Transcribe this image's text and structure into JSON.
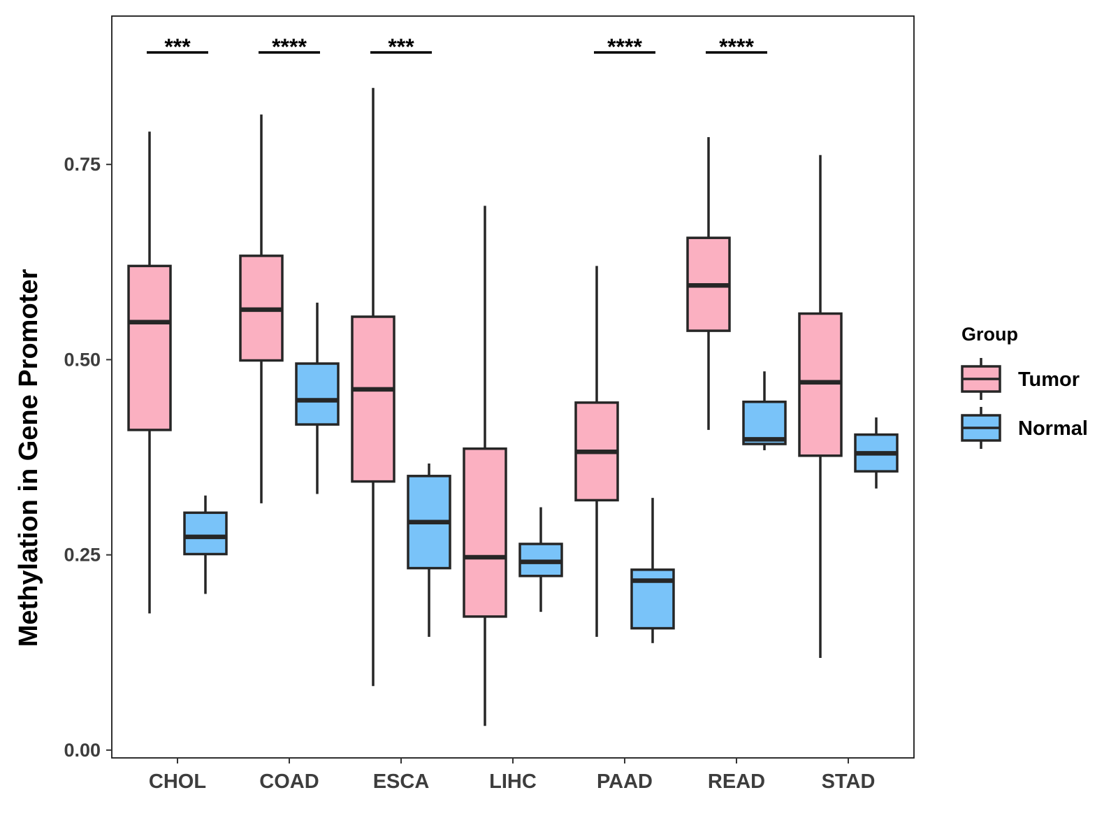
{
  "chart_data": {
    "type": "boxplot",
    "title": "",
    "xlabel": "",
    "ylabel": "Methylation in Gene Promoter",
    "ylim": [
      -0.01,
      0.94
    ],
    "yticks": [
      "0.00",
      "0.25",
      "0.50",
      "0.75"
    ],
    "ytick_values": [
      0,
      0.25,
      0.5,
      0.75
    ],
    "categories": [
      "CHOL",
      "COAD",
      "ESCA",
      "LIHC",
      "PAAD",
      "READ",
      "STAD"
    ],
    "grid": false,
    "legend": {
      "title": "Group",
      "position": "right",
      "entries": [
        {
          "name": "Tumor",
          "color": "#fbb0c1"
        },
        {
          "name": "Normal",
          "color": "#79c3f9"
        }
      ]
    },
    "series": [
      {
        "name": "Tumor",
        "color": "#fbb0c1",
        "boxes": [
          {
            "min": 0.175,
            "q1": 0.41,
            "median": 0.548,
            "q3": 0.62,
            "max": 0.792
          },
          {
            "min": 0.316,
            "q1": 0.499,
            "median": 0.564,
            "q3": 0.633,
            "max": 0.814
          },
          {
            "min": 0.082,
            "q1": 0.344,
            "median": 0.462,
            "q3": 0.555,
            "max": 0.848
          },
          {
            "min": 0.031,
            "q1": 0.171,
            "median": 0.247,
            "q3": 0.386,
            "max": 0.697
          },
          {
            "min": 0.145,
            "q1": 0.32,
            "median": 0.382,
            "q3": 0.445,
            "max": 0.62
          },
          {
            "min": 0.41,
            "q1": 0.537,
            "median": 0.595,
            "q3": 0.656,
            "max": 0.785
          },
          {
            "min": 0.118,
            "q1": 0.377,
            "median": 0.471,
            "q3": 0.559,
            "max": 0.762
          }
        ]
      },
      {
        "name": "Normal",
        "color": "#79c3f9",
        "boxes": [
          {
            "min": 0.2,
            "q1": 0.251,
            "median": 0.273,
            "q3": 0.304,
            "max": 0.326
          },
          {
            "min": 0.328,
            "q1": 0.417,
            "median": 0.448,
            "q3": 0.495,
            "max": 0.573
          },
          {
            "min": 0.145,
            "q1": 0.233,
            "median": 0.292,
            "q3": 0.351,
            "max": 0.367
          },
          {
            "min": 0.177,
            "q1": 0.223,
            "median": 0.241,
            "q3": 0.264,
            "max": 0.311
          },
          {
            "min": 0.137,
            "q1": 0.156,
            "median": 0.217,
            "q3": 0.231,
            "max": 0.323
          },
          {
            "min": 0.384,
            "q1": 0.392,
            "median": 0.398,
            "q3": 0.446,
            "max": 0.485
          },
          {
            "min": 0.335,
            "q1": 0.357,
            "median": 0.38,
            "q3": 0.404,
            "max": 0.426
          }
        ]
      }
    ],
    "annotations": [
      {
        "category": "CHOL",
        "text": "***"
      },
      {
        "category": "COAD",
        "text": "****"
      },
      {
        "category": "ESCA",
        "text": "***"
      },
      {
        "category": "PAAD",
        "text": "****"
      },
      {
        "category": "READ",
        "text": "****"
      }
    ]
  }
}
